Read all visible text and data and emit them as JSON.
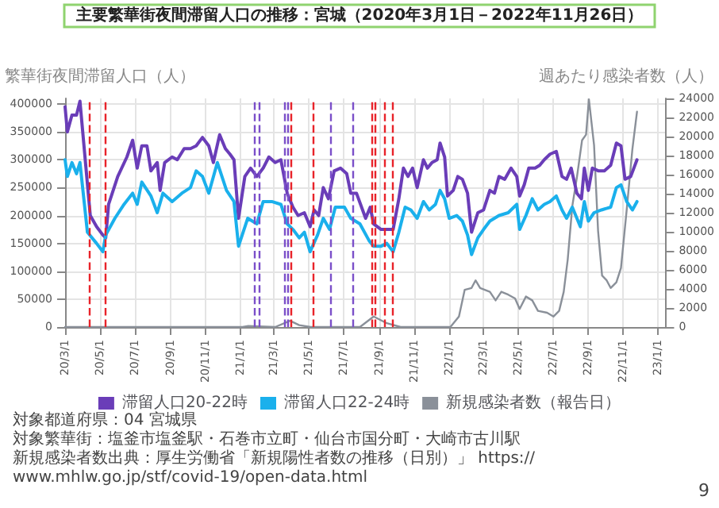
{
  "chart_data": {
    "type": "line",
    "title": "主要繁華街夜間滞留人口の推移：宮城（2020年3月1日－2022年11月26日）",
    "ylabel": "繁華街夜間滞留人口（人）",
    "y2label": "週あたり感染者数（人）",
    "xlim": [
      "2020-03-01",
      "2023-01-15"
    ],
    "xticks": [
      {
        "value": "2020-03-01",
        "label": "20/3/1"
      },
      {
        "value": "2020-05-01",
        "label": "20/5/1"
      },
      {
        "value": "2020-07-01",
        "label": "20/7/1"
      },
      {
        "value": "2020-09-01",
        "label": "20/9/1"
      },
      {
        "value": "2020-11-01",
        "label": "20/11/1"
      },
      {
        "value": "2021-01-01",
        "label": "21/1/1"
      },
      {
        "value": "2021-03-01",
        "label": "21/3/1"
      },
      {
        "value": "2021-05-01",
        "label": "21/5/1"
      },
      {
        "value": "2021-07-01",
        "label": "21/7/1"
      },
      {
        "value": "2021-09-01",
        "label": "21/9/1"
      },
      {
        "value": "2021-11-01",
        "label": "21/11/1"
      },
      {
        "value": "2022-01-01",
        "label": "22/1/1"
      },
      {
        "value": "2022-03-01",
        "label": "22/3/1"
      },
      {
        "value": "2022-05-01",
        "label": "22/5/1"
      },
      {
        "value": "2022-07-01",
        "label": "22/7/1"
      },
      {
        "value": "2022-09-01",
        "label": "22/9/1"
      },
      {
        "value": "2022-11-01",
        "label": "22/11/1"
      },
      {
        "value": "2023-01-01",
        "label": "23/1/1"
      }
    ],
    "ylim": [
      0,
      410000
    ],
    "yticks": [
      0,
      50000,
      100000,
      150000,
      200000,
      250000,
      300000,
      350000,
      400000
    ],
    "y2lim": [
      0,
      24000
    ],
    "y2ticks": [
      0,
      2000,
      4000,
      6000,
      8000,
      10000,
      12000,
      14000,
      16000,
      18000,
      20000,
      22000,
      24000
    ],
    "grid": true,
    "legend": "bottom",
    "marker": "none",
    "line_style": "solid",
    "series": [
      {
        "name": "滞留人口20-22時",
        "color": "#6a3db8",
        "x": [
          "2020-03-01",
          "2020-03-05",
          "2020-03-13",
          "2020-03-21",
          "2020-03-27",
          "2020-04-14",
          "2020-04-25",
          "2020-05-06",
          "2020-05-11",
          "2020-05-16",
          "2020-06-01",
          "2020-06-17",
          "2020-06-27",
          "2020-07-05",
          "2020-07-13",
          "2020-07-22",
          "2020-07-29",
          "2020-08-09",
          "2020-08-14",
          "2020-08-22",
          "2020-09-04",
          "2020-09-13",
          "2020-09-25",
          "2020-10-06",
          "2020-10-16",
          "2020-10-27",
          "2020-11-07",
          "2020-11-15",
          "2020-11-26",
          "2020-12-06",
          "2020-12-14",
          "2020-12-21",
          "2020-12-29",
          "2021-01-09",
          "2021-01-19",
          "2021-01-30",
          "2021-02-10",
          "2021-02-20",
          "2021-03-03",
          "2021-03-13",
          "2021-03-24",
          "2021-04-03",
          "2021-04-12",
          "2021-04-23",
          "2021-05-03",
          "2021-05-10",
          "2021-05-18",
          "2021-05-26",
          "2021-06-04",
          "2021-06-14",
          "2021-06-25",
          "2021-07-06",
          "2021-07-13",
          "2021-07-23",
          "2021-08-08",
          "2021-08-16",
          "2021-08-22",
          "2021-09-04",
          "2021-09-14",
          "2021-09-25",
          "2021-10-05",
          "2021-10-13",
          "2021-10-21",
          "2021-10-29",
          "2021-11-06",
          "2021-11-17",
          "2021-11-24",
          "2021-12-02",
          "2021-12-11",
          "2021-12-16",
          "2021-12-24",
          "2021-12-29",
          "2022-01-08",
          "2022-01-16",
          "2022-01-24",
          "2022-02-02",
          "2022-02-09",
          "2022-02-20",
          "2022-03-02",
          "2022-03-13",
          "2022-03-21",
          "2022-03-29",
          "2022-04-08",
          "2022-04-19",
          "2022-04-29",
          "2022-05-04",
          "2022-05-12",
          "2022-05-20",
          "2022-05-31",
          "2022-06-08",
          "2022-06-16",
          "2022-06-26",
          "2022-07-07",
          "2022-07-17",
          "2022-07-25",
          "2022-08-02",
          "2022-08-12",
          "2022-08-20",
          "2022-08-25",
          "2022-09-01",
          "2022-09-08",
          "2022-09-19",
          "2022-09-29",
          "2022-10-10",
          "2022-10-20",
          "2022-10-28",
          "2022-11-04",
          "2022-11-14",
          "2022-11-25"
        ],
        "values": [
          395000,
          350000,
          380000,
          380000,
          405000,
          200000,
          180000,
          165000,
          160000,
          220000,
          270000,
          305000,
          335000,
          285000,
          325000,
          325000,
          280000,
          295000,
          245000,
          295000,
          305000,
          300000,
          320000,
          320000,
          325000,
          340000,
          325000,
          295000,
          345000,
          320000,
          310000,
          300000,
          195000,
          270000,
          285000,
          270000,
          285000,
          305000,
          295000,
          300000,
          240000,
          215000,
          200000,
          205000,
          180000,
          210000,
          200000,
          250000,
          230000,
          280000,
          285000,
          275000,
          240000,
          240000,
          195000,
          215000,
          185000,
          175000,
          175000,
          175000,
          230000,
          285000,
          270000,
          285000,
          250000,
          300000,
          285000,
          295000,
          300000,
          330000,
          305000,
          235000,
          245000,
          270000,
          265000,
          240000,
          170000,
          205000,
          210000,
          245000,
          240000,
          270000,
          265000,
          285000,
          270000,
          235000,
          255000,
          285000,
          285000,
          290000,
          300000,
          310000,
          315000,
          270000,
          265000,
          285000,
          240000,
          230000,
          285000,
          245000,
          285000,
          280000,
          280000,
          290000,
          330000,
          325000,
          265000,
          270000,
          300000
        ]
      },
      {
        "name": "滞留人口22-24時",
        "color": "#1ab0ec",
        "x": [
          "2020-03-01",
          "2020-03-05",
          "2020-03-13",
          "2020-03-21",
          "2020-03-27",
          "2020-04-09",
          "2020-04-25",
          "2020-05-06",
          "2020-05-11",
          "2020-05-27",
          "2020-06-12",
          "2020-06-27",
          "2020-07-05",
          "2020-07-13",
          "2020-07-29",
          "2020-08-09",
          "2020-08-19",
          "2020-09-04",
          "2020-09-21",
          "2020-10-06",
          "2020-10-16",
          "2020-10-27",
          "2020-11-07",
          "2020-11-22",
          "2020-12-08",
          "2020-12-21",
          "2020-12-29",
          "2021-01-14",
          "2021-01-30",
          "2021-02-10",
          "2021-02-25",
          "2021-03-13",
          "2021-03-24",
          "2021-04-03",
          "2021-04-14",
          "2021-04-23",
          "2021-05-03",
          "2021-05-16",
          "2021-05-26",
          "2021-06-06",
          "2021-06-16",
          "2021-07-02",
          "2021-07-13",
          "2021-07-29",
          "2021-08-14",
          "2021-08-22",
          "2021-09-04",
          "2021-09-14",
          "2021-09-25",
          "2021-10-05",
          "2021-10-16",
          "2021-10-26",
          "2021-11-06",
          "2021-11-17",
          "2021-11-27",
          "2021-12-08",
          "2021-12-16",
          "2021-12-24",
          "2022-01-01",
          "2022-01-14",
          "2022-01-24",
          "2022-02-02",
          "2022-02-09",
          "2022-02-20",
          "2022-03-02",
          "2022-03-13",
          "2022-03-29",
          "2022-04-14",
          "2022-04-29",
          "2022-05-04",
          "2022-05-15",
          "2022-05-26",
          "2022-06-05",
          "2022-06-16",
          "2022-06-26",
          "2022-07-07",
          "2022-07-17",
          "2022-07-25",
          "2022-08-04",
          "2022-08-18",
          "2022-08-25",
          "2022-09-01",
          "2022-09-11",
          "2022-09-24",
          "2022-10-10",
          "2022-10-20",
          "2022-10-28",
          "2022-11-07",
          "2022-11-17",
          "2022-11-25"
        ],
        "values": [
          300000,
          270000,
          295000,
          275000,
          295000,
          170000,
          150000,
          135000,
          165000,
          195000,
          220000,
          240000,
          220000,
          260000,
          235000,
          205000,
          240000,
          225000,
          240000,
          250000,
          280000,
          270000,
          240000,
          295000,
          245000,
          225000,
          145000,
          195000,
          185000,
          225000,
          225000,
          220000,
          185000,
          175000,
          160000,
          170000,
          135000,
          165000,
          195000,
          175000,
          215000,
          215000,
          195000,
          185000,
          155000,
          145000,
          145000,
          150000,
          135000,
          170000,
          215000,
          210000,
          195000,
          225000,
          210000,
          220000,
          245000,
          230000,
          195000,
          200000,
          190000,
          165000,
          130000,
          160000,
          175000,
          190000,
          200000,
          205000,
          220000,
          175000,
          200000,
          230000,
          210000,
          220000,
          225000,
          235000,
          210000,
          195000,
          215000,
          180000,
          225000,
          190000,
          205000,
          210000,
          215000,
          250000,
          255000,
          225000,
          210000,
          225000
        ]
      },
      {
        "name": "新規感染者数（報告日）",
        "color": "#8a9099",
        "axis": "y2",
        "x": [
          "2020-03-01",
          "2020-11-07",
          "2021-01-05",
          "2021-01-15",
          "2021-03-03",
          "2021-03-29",
          "2021-04-14",
          "2021-05-04",
          "2021-07-29",
          "2021-08-22",
          "2021-09-14",
          "2021-10-08",
          "2022-01-03",
          "2022-01-18",
          "2022-01-28",
          "2022-02-09",
          "2022-02-16",
          "2022-02-24",
          "2022-03-13",
          "2022-03-23",
          "2022-04-02",
          "2022-04-14",
          "2022-04-26",
          "2022-05-04",
          "2022-05-15",
          "2022-05-26",
          "2022-06-05",
          "2022-06-21",
          "2022-07-02",
          "2022-07-12",
          "2022-07-20",
          "2022-07-27",
          "2022-08-04",
          "2022-08-12",
          "2022-08-21",
          "2022-08-28",
          "2022-09-02",
          "2022-09-11",
          "2022-09-18",
          "2022-09-25",
          "2022-10-03",
          "2022-10-10",
          "2022-10-20",
          "2022-10-28",
          "2022-11-07",
          "2022-11-17",
          "2022-11-25"
        ],
        "values": [
          0,
          0,
          0,
          100,
          0,
          650,
          200,
          0,
          0,
          1100,
          400,
          0,
          0,
          1100,
          3900,
          4100,
          4900,
          4100,
          3700,
          2800,
          3700,
          3400,
          3000,
          1900,
          3200,
          2800,
          1700,
          1500,
          1100,
          1700,
          3700,
          7100,
          12700,
          15700,
          19600,
          20200,
          23900,
          19100,
          10100,
          5400,
          4900,
          4100,
          4700,
          6200,
          12300,
          18700,
          22600
        ]
      }
    ],
    "ref_lines": [
      {
        "axis": "x",
        "value": "2020-04-12",
        "color": "#e8232a",
        "line_style": "dashed"
      },
      {
        "axis": "x",
        "value": "2020-05-11",
        "color": "#e8232a",
        "line_style": "dashed"
      },
      {
        "axis": "x",
        "value": "2021-01-25",
        "color": "#7b4fc9",
        "line_style": "dashed"
      },
      {
        "axis": "x",
        "value": "2021-02-04",
        "color": "#7b4fc9",
        "line_style": "dashed"
      },
      {
        "axis": "x",
        "value": "2021-03-19",
        "color": "#7b4fc9",
        "line_style": "dashed"
      },
      {
        "axis": "x",
        "value": "2021-03-24",
        "color": "#7b4fc9",
        "line_style": "dashed"
      },
      {
        "axis": "x",
        "value": "2021-03-31",
        "color": "#e8232a",
        "line_style": "dashed"
      },
      {
        "axis": "x",
        "value": "2021-05-07",
        "color": "#e8232a",
        "line_style": "dashed"
      },
      {
        "axis": "x",
        "value": "2021-06-09",
        "color": "#7b4fc9",
        "line_style": "dashed"
      },
      {
        "axis": "x",
        "value": "2021-07-16",
        "color": "#7b4fc9",
        "line_style": "dashed"
      },
      {
        "axis": "x",
        "value": "2021-08-18",
        "color": "#e8232a",
        "line_style": "dashed"
      },
      {
        "axis": "x",
        "value": "2021-08-24",
        "color": "#e8232a",
        "line_style": "dashed"
      },
      {
        "axis": "x",
        "value": "2021-09-09",
        "color": "#e8232a",
        "line_style": "dashed"
      },
      {
        "axis": "x",
        "value": "2021-09-25",
        "color": "#e8232a",
        "line_style": "dashed"
      }
    ],
    "annotations": [
      "対象都道府県：04 宮城県",
      "対象繁華街：塩釜市塩釜駅・石巻市立町・仙台市国分町・大崎市古川駅",
      "新規感染者数出典：厚生労働省「新規陽性者数の推移（日別）」 https://www.mhlw.go.jp/stf/covid-19/open-data.html",
      "9"
    ]
  }
}
